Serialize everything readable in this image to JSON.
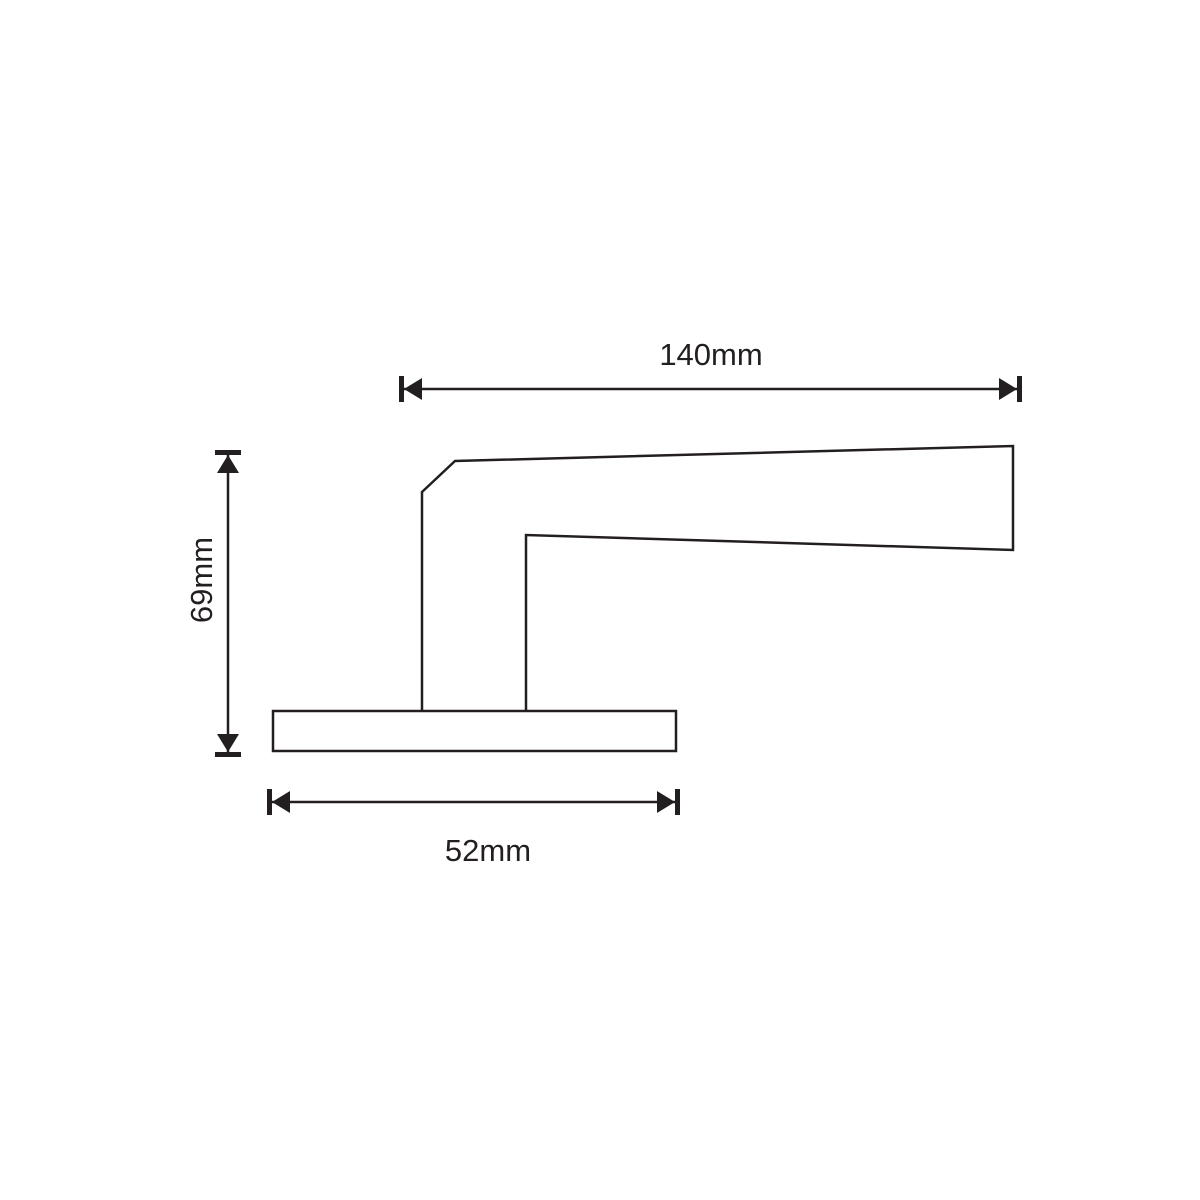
{
  "dimensions": {
    "length": "140mm",
    "height": "69mm",
    "rosette_width": "52mm"
  },
  "colors": {
    "line": "#231f20",
    "background": "#ffffff"
  }
}
